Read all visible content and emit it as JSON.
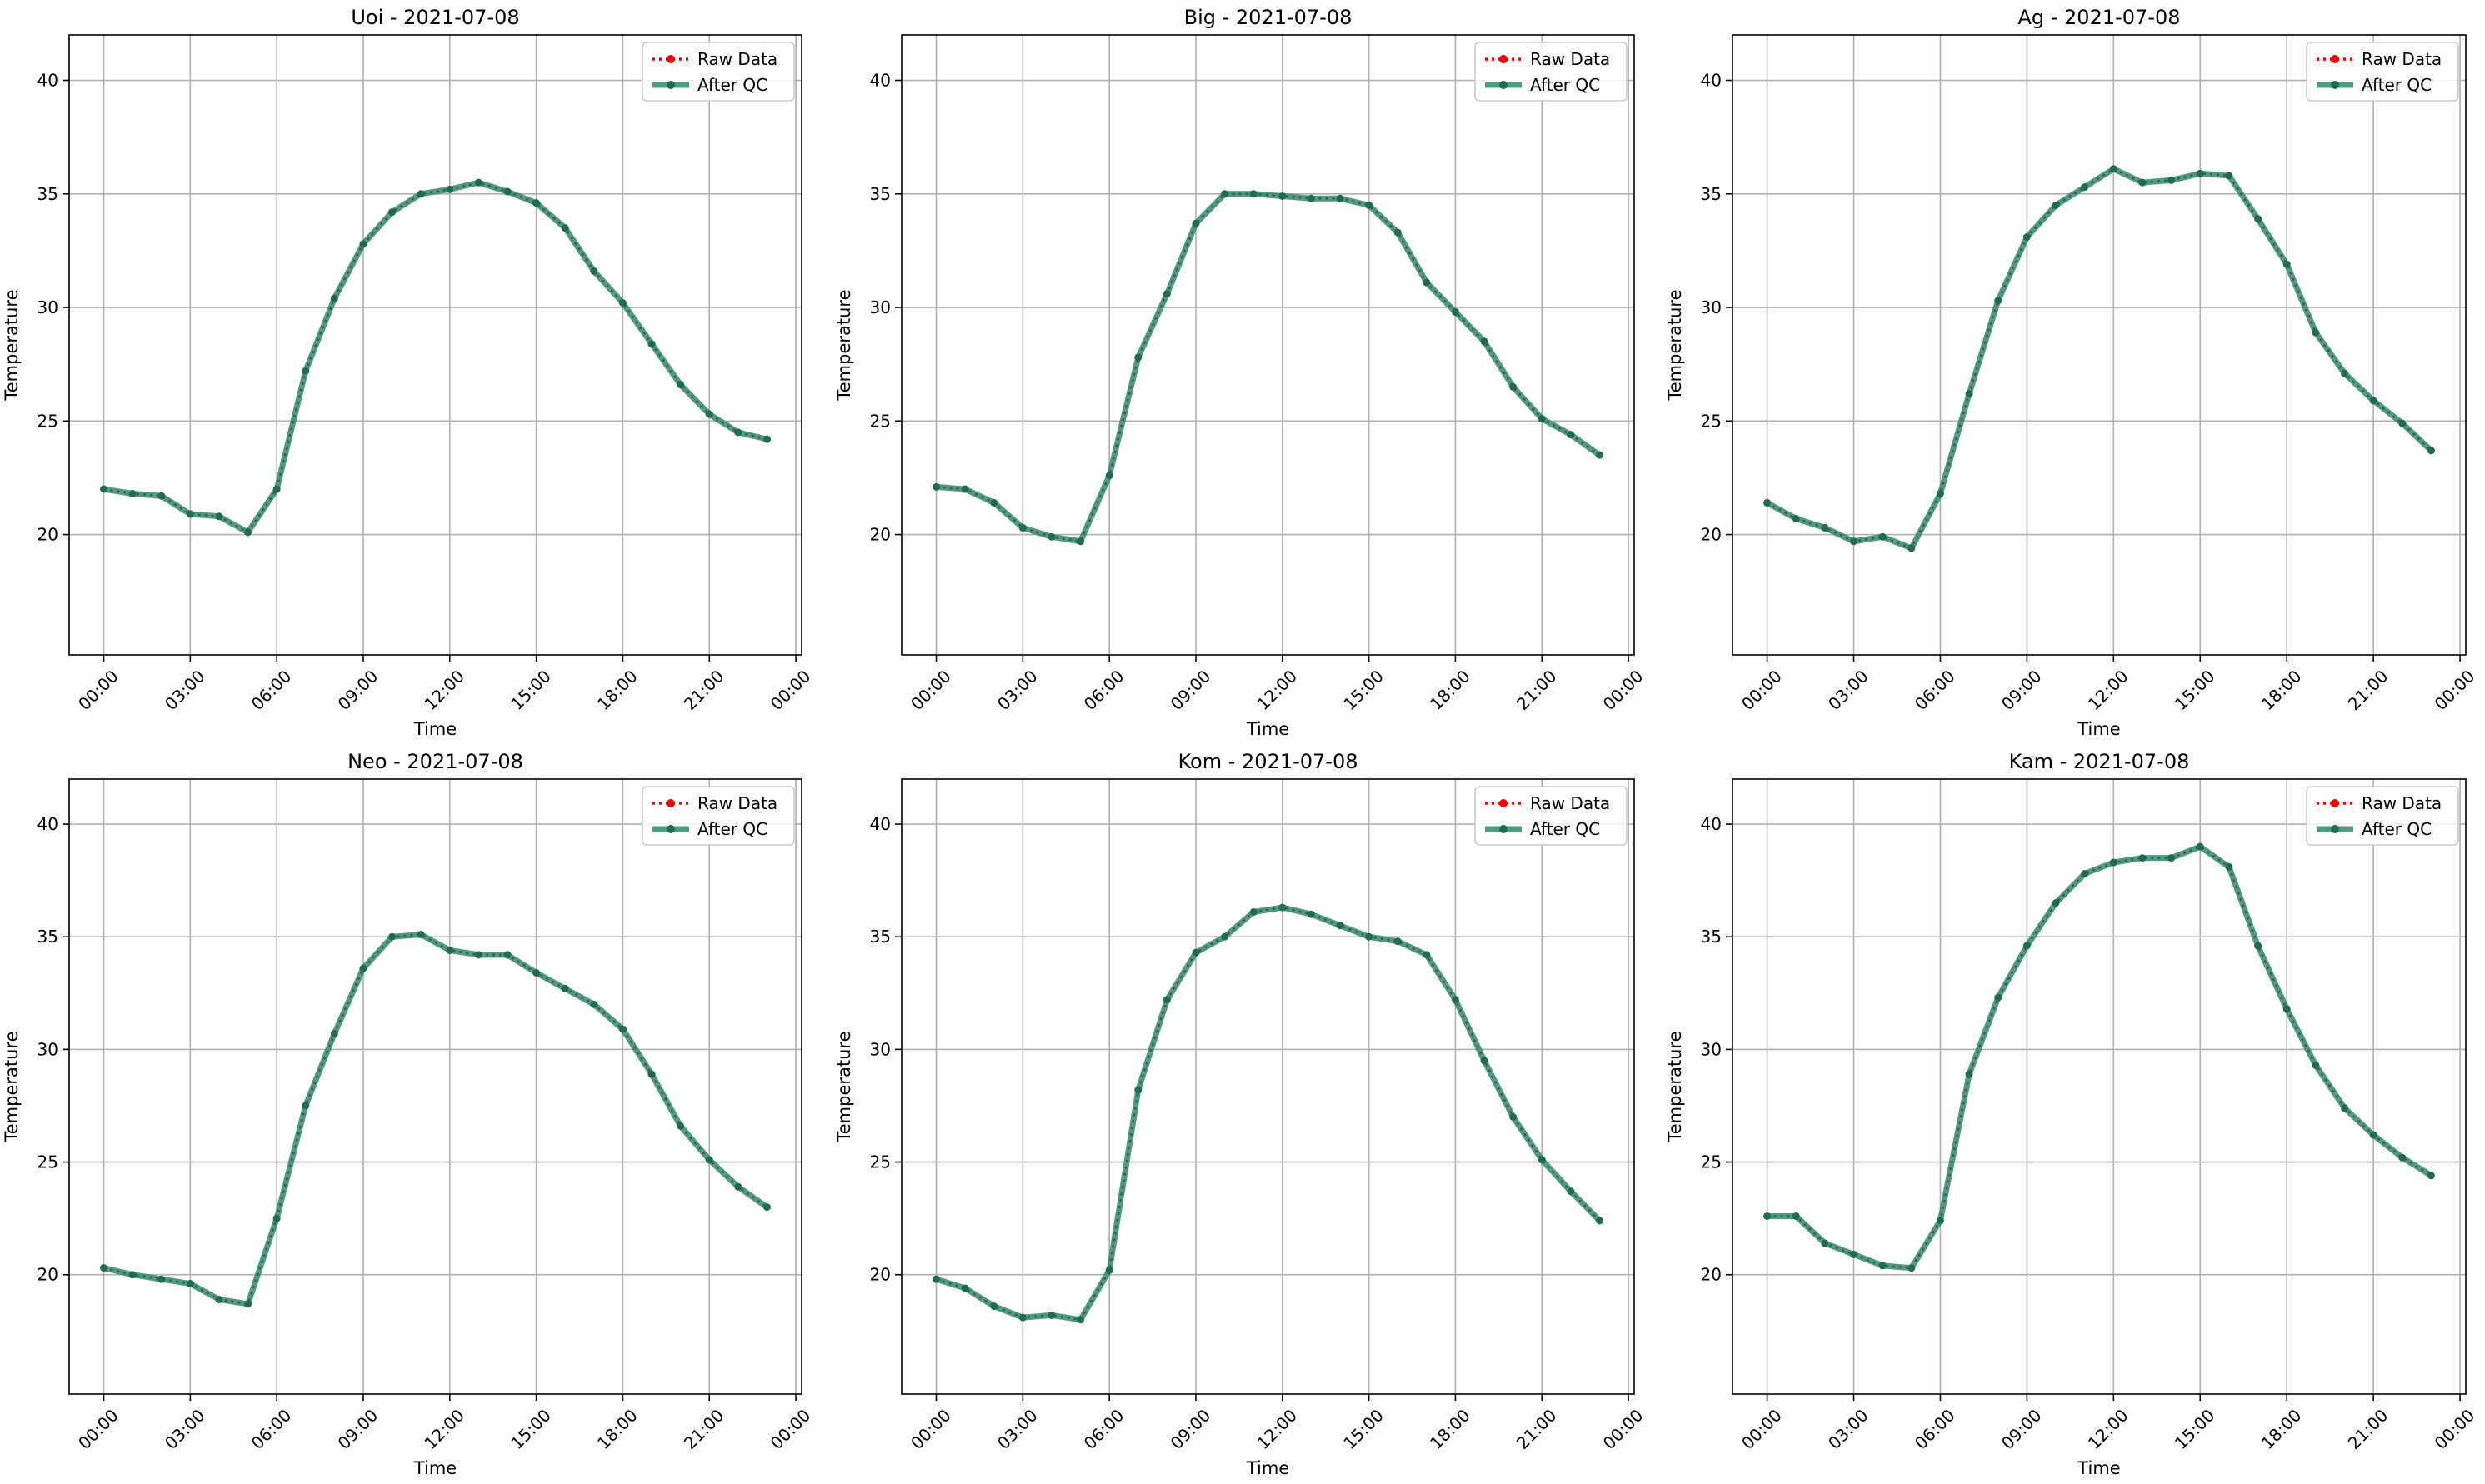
{
  "colors": {
    "raw": "#ff0000",
    "qc": "#2a8c6e",
    "qc_marker": "#1f6b52",
    "grid": "#b0b0b0",
    "axis": "#000000"
  },
  "chart_data": [
    {
      "type": "line",
      "title": "Uoi - 2021-07-08",
      "xlabel": "Time",
      "ylabel": "Temperature",
      "x_ticks": [
        "00:00",
        "03:00",
        "06:00",
        "09:00",
        "12:00",
        "15:00",
        "18:00",
        "21:00",
        "00:00"
      ],
      "y_ticks": [
        "20",
        "25",
        "30",
        "35",
        "40"
      ],
      "ylim": [
        14.7,
        42.0
      ],
      "xlim_hours": [
        -1.2,
        24.2
      ],
      "grid": true,
      "legend_position": "top-right",
      "x_hours": [
        0,
        1,
        2,
        3,
        4,
        5,
        6,
        7,
        8,
        9,
        10,
        11,
        12,
        13,
        14,
        15,
        16,
        17,
        18,
        19,
        20,
        21,
        22,
        23
      ],
      "series": [
        {
          "name": "Raw Data",
          "values": [
            22.0,
            21.8,
            21.7,
            20.9,
            20.8,
            20.1,
            22.0,
            27.2,
            30.4,
            32.8,
            34.2,
            35.0,
            35.2,
            35.5,
            35.1,
            34.6,
            33.5,
            31.6,
            30.2,
            28.4,
            26.6,
            25.3,
            24.5,
            24.2
          ]
        },
        {
          "name": "After QC",
          "values": [
            22.0,
            21.8,
            21.7,
            20.9,
            20.8,
            20.1,
            22.0,
            27.2,
            30.4,
            32.8,
            34.2,
            35.0,
            35.2,
            35.5,
            35.1,
            34.6,
            33.5,
            31.6,
            30.2,
            28.4,
            26.6,
            25.3,
            24.5,
            24.2
          ]
        }
      ]
    },
    {
      "type": "line",
      "title": "Big - 2021-07-08",
      "xlabel": "Time",
      "ylabel": "Temperature",
      "x_ticks": [
        "00:00",
        "03:00",
        "06:00",
        "09:00",
        "12:00",
        "15:00",
        "18:00",
        "21:00",
        "00:00"
      ],
      "y_ticks": [
        "20",
        "25",
        "30",
        "35",
        "40"
      ],
      "ylim": [
        14.7,
        42.0
      ],
      "xlim_hours": [
        -1.2,
        24.2
      ],
      "grid": true,
      "legend_position": "top-right",
      "x_hours": [
        0,
        1,
        2,
        3,
        4,
        5,
        6,
        7,
        8,
        9,
        10,
        11,
        12,
        13,
        14,
        15,
        16,
        17,
        18,
        19,
        20,
        21,
        22,
        23
      ],
      "series": [
        {
          "name": "Raw Data",
          "values": [
            22.1,
            22.0,
            21.4,
            20.3,
            19.9,
            19.7,
            22.6,
            27.8,
            30.6,
            33.7,
            35.0,
            35.0,
            34.9,
            34.8,
            34.8,
            34.5,
            33.3,
            31.1,
            29.8,
            28.5,
            26.5,
            25.1,
            24.4,
            23.5
          ]
        },
        {
          "name": "After QC",
          "values": [
            22.1,
            22.0,
            21.4,
            20.3,
            19.9,
            19.7,
            22.6,
            27.8,
            30.6,
            33.7,
            35.0,
            35.0,
            34.9,
            34.8,
            34.8,
            34.5,
            33.3,
            31.1,
            29.8,
            28.5,
            26.5,
            25.1,
            24.4,
            23.5
          ]
        }
      ]
    },
    {
      "type": "line",
      "title": "Ag - 2021-07-08",
      "xlabel": "Time",
      "ylabel": "Temperature",
      "x_ticks": [
        "00:00",
        "03:00",
        "06:00",
        "09:00",
        "12:00",
        "15:00",
        "18:00",
        "21:00",
        "00:00"
      ],
      "y_ticks": [
        "20",
        "25",
        "30",
        "35",
        "40"
      ],
      "ylim": [
        14.7,
        42.0
      ],
      "xlim_hours": [
        -1.2,
        24.2
      ],
      "grid": true,
      "legend_position": "top-right",
      "x_hours": [
        0,
        1,
        2,
        3,
        4,
        5,
        6,
        7,
        8,
        9,
        10,
        11,
        12,
        13,
        14,
        15,
        16,
        17,
        18,
        19,
        20,
        21,
        22,
        23
      ],
      "series": [
        {
          "name": "Raw Data",
          "values": [
            21.4,
            20.7,
            20.3,
            19.7,
            19.9,
            19.4,
            21.8,
            26.2,
            30.3,
            33.1,
            34.5,
            35.3,
            36.1,
            35.5,
            35.6,
            35.9,
            35.8,
            33.9,
            31.9,
            28.9,
            27.1,
            25.9,
            24.9,
            23.7
          ]
        },
        {
          "name": "After QC",
          "values": [
            21.4,
            20.7,
            20.3,
            19.7,
            19.9,
            19.4,
            21.8,
            26.2,
            30.3,
            33.1,
            34.5,
            35.3,
            36.1,
            35.5,
            35.6,
            35.9,
            35.8,
            33.9,
            31.9,
            28.9,
            27.1,
            25.9,
            24.9,
            23.7
          ]
        }
      ]
    },
    {
      "type": "line",
      "title": "Neo - 2021-07-08",
      "xlabel": "Time",
      "ylabel": "Temperature",
      "x_ticks": [
        "00:00",
        "03:00",
        "06:00",
        "09:00",
        "12:00",
        "15:00",
        "18:00",
        "21:00",
        "00:00"
      ],
      "y_ticks": [
        "20",
        "25",
        "30",
        "35",
        "40"
      ],
      "ylim": [
        14.7,
        42.0
      ],
      "xlim_hours": [
        -1.2,
        24.2
      ],
      "grid": true,
      "legend_position": "top-right",
      "x_hours": [
        0,
        1,
        2,
        3,
        4,
        5,
        6,
        7,
        8,
        9,
        10,
        11,
        12,
        13,
        14,
        15,
        16,
        17,
        18,
        19,
        20,
        21,
        22,
        23
      ],
      "series": [
        {
          "name": "Raw Data",
          "values": [
            20.3,
            20.0,
            19.8,
            19.6,
            18.9,
            18.7,
            22.5,
            27.5,
            30.7,
            33.6,
            35.0,
            35.1,
            34.4,
            34.2,
            34.2,
            33.4,
            32.7,
            32.0,
            30.9,
            28.9,
            26.6,
            25.1,
            23.9,
            23.0
          ]
        },
        {
          "name": "After QC",
          "values": [
            20.3,
            20.0,
            19.8,
            19.6,
            18.9,
            18.7,
            22.5,
            27.5,
            30.7,
            33.6,
            35.0,
            35.1,
            34.4,
            34.2,
            34.2,
            33.4,
            32.7,
            32.0,
            30.9,
            28.9,
            26.6,
            25.1,
            23.9,
            23.0
          ]
        }
      ]
    },
    {
      "type": "line",
      "title": "Kom - 2021-07-08",
      "xlabel": "Time",
      "ylabel": "Temperature",
      "x_ticks": [
        "00:00",
        "03:00",
        "06:00",
        "09:00",
        "12:00",
        "15:00",
        "18:00",
        "21:00",
        "00:00"
      ],
      "y_ticks": [
        "20",
        "25",
        "30",
        "35",
        "40"
      ],
      "ylim": [
        14.7,
        42.0
      ],
      "xlim_hours": [
        -1.2,
        24.2
      ],
      "grid": true,
      "legend_position": "top-right",
      "x_hours": [
        0,
        1,
        2,
        3,
        4,
        5,
        6,
        7,
        8,
        9,
        10,
        11,
        12,
        13,
        14,
        15,
        16,
        17,
        18,
        19,
        20,
        21,
        22,
        23
      ],
      "series": [
        {
          "name": "Raw Data",
          "values": [
            19.8,
            19.4,
            18.6,
            18.1,
            18.2,
            18.0,
            20.2,
            28.2,
            32.2,
            34.3,
            35.0,
            36.1,
            36.3,
            36.0,
            35.5,
            35.0,
            34.8,
            34.2,
            32.2,
            29.5,
            27.0,
            25.1,
            23.7,
            22.4
          ]
        },
        {
          "name": "After QC",
          "values": [
            19.8,
            19.4,
            18.6,
            18.1,
            18.2,
            18.0,
            20.2,
            28.2,
            32.2,
            34.3,
            35.0,
            36.1,
            36.3,
            36.0,
            35.5,
            35.0,
            34.8,
            34.2,
            32.2,
            29.5,
            27.0,
            25.1,
            23.7,
            22.4
          ]
        }
      ]
    },
    {
      "type": "line",
      "title": "Kam - 2021-07-08",
      "xlabel": "Time",
      "ylabel": "Temperature",
      "x_ticks": [
        "00:00",
        "03:00",
        "06:00",
        "09:00",
        "12:00",
        "15:00",
        "18:00",
        "21:00",
        "00:00"
      ],
      "y_ticks": [
        "20",
        "25",
        "30",
        "35",
        "40"
      ],
      "ylim": [
        14.7,
        42.0
      ],
      "xlim_hours": [
        -1.2,
        24.2
      ],
      "grid": true,
      "legend_position": "top-right",
      "x_hours": [
        0,
        1,
        2,
        3,
        4,
        5,
        6,
        7,
        8,
        9,
        10,
        11,
        12,
        13,
        14,
        15,
        16,
        17,
        18,
        19,
        20,
        21,
        22,
        23
      ],
      "series": [
        {
          "name": "Raw Data",
          "values": [
            22.6,
            22.6,
            21.4,
            20.9,
            20.4,
            20.3,
            22.4,
            28.9,
            32.3,
            34.6,
            36.5,
            37.8,
            38.3,
            38.5,
            38.5,
            39.0,
            38.1,
            34.6,
            31.8,
            29.3,
            27.4,
            26.2,
            25.2,
            24.4
          ]
        },
        {
          "name": "After QC",
          "values": [
            22.6,
            22.6,
            21.4,
            20.9,
            20.4,
            20.3,
            22.4,
            28.9,
            32.3,
            34.6,
            36.5,
            37.8,
            38.3,
            38.5,
            38.5,
            39.0,
            38.1,
            34.6,
            31.8,
            29.3,
            27.4,
            26.2,
            25.2,
            24.4
          ]
        }
      ]
    }
  ]
}
